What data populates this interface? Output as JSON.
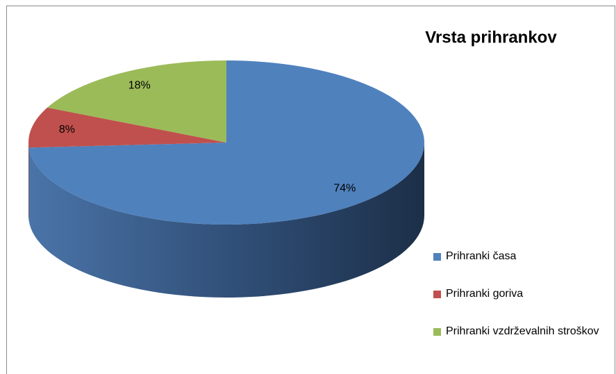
{
  "chart_data": {
    "type": "pie",
    "title": "Vrsta prihrankov",
    "categories": [
      "Prihranki časa",
      "Prihranki goriva",
      "Prihranki vzdrževalnih stroškov"
    ],
    "values": [
      74,
      8,
      18
    ],
    "value_labels": [
      "74%",
      "8%",
      "18%"
    ],
    "colors": [
      "#4f81bd",
      "#c0504d",
      "#9bbb59"
    ],
    "legend": "right"
  }
}
